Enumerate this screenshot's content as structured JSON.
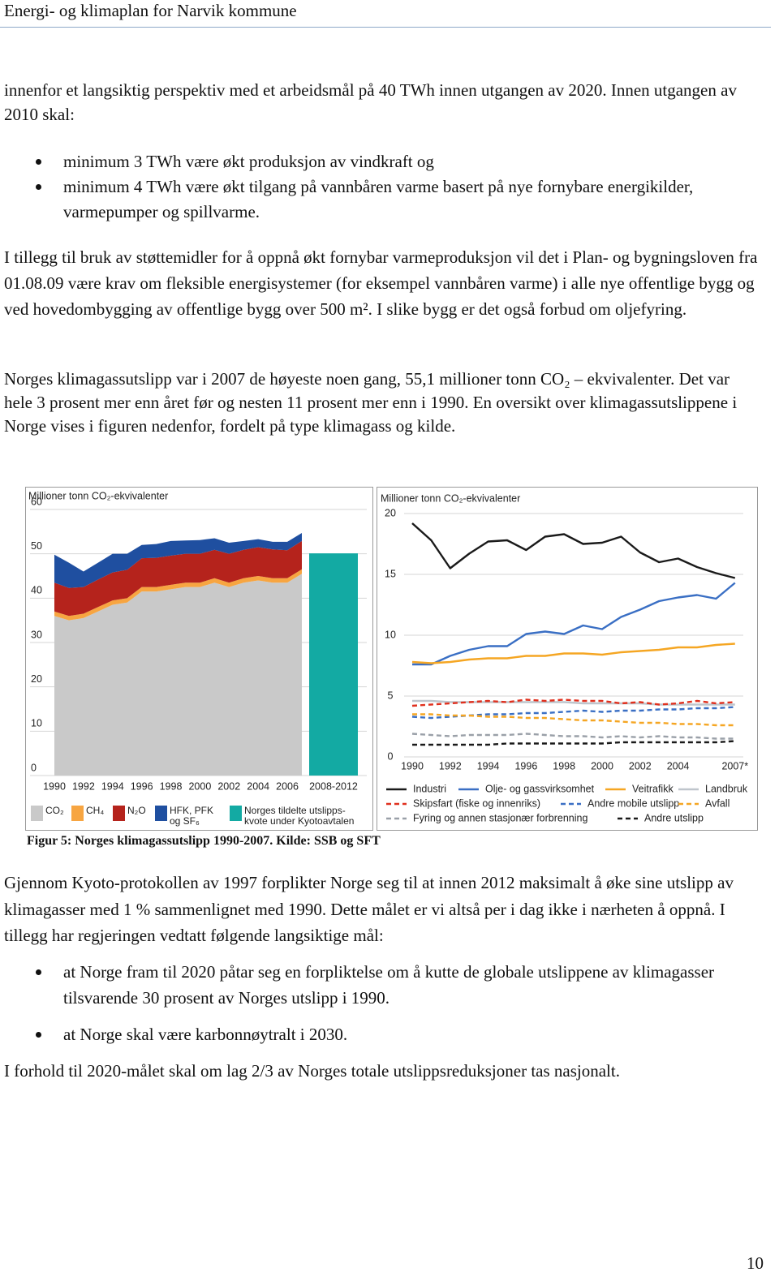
{
  "header": {
    "title": "Energi- og klimaplan for Narvik kommune"
  },
  "intro": "innenfor et langsiktig perspektiv med et arbeidsmål på 40 TWh innen utgangen av 2020. Innen utgangen av 2010 skal:",
  "list1": [
    "minimum 3 TWh være økt produksjon av vindkraft og",
    "minimum 4 TWh være økt tilgang på vannbåren varme basert på nye fornybare energikilder, varmepumper og spillvarme."
  ],
  "paragraph2": "I tillegg til bruk av støttemidler for å oppnå økt fornybar varmeproduksjon vil det i Plan- og bygningsloven fra 01.08.09 være krav om fleksible energisystemer (for eksempel vannbåren varme) i alle nye offentlige bygg og ved hovedombygging av offentlige bygg over 500 m². I slike bygg er det også forbud om oljefyring.",
  "paragraph3": "Norges klimagassutslipp var i 2007 de høyeste noen gang, 55,1 millioner tonn CO₂ – ekvivalenter. Det var hele 3 prosent mer enn året før og nesten 11 prosent mer enn i 1990. En oversikt over klimagassutslippene i Norge vises i figuren nedenfor, fordelt på type klimagass og kilde.",
  "caption": "Figur 5: Norges klimagassutslipp 1990-2007. Kilde: SSB og SFT",
  "paragraph4": "Gjennom Kyoto-protokollen av 1997 forplikter Norge seg til at innen 2012 maksimalt å øke sine utslipp av klimagasser med 1 % sammenlignet med 1990. Dette målet er vi altså per i dag ikke i nærheten å oppnå. I tillegg har regjeringen vedtatt følgende langsiktige mål:",
  "list2": [
    "at Norge fram til 2020 påtar seg en forpliktelse om å kutte de globale utslippene av klimagasser tilsvarende 30 prosent av Norges utslipp i 1990.",
    "at Norge skal være karbonnøytralt i 2030."
  ],
  "paragraph5": "I forhold til 2020-målet skal om lag 2/3 av Norges totale utslippsreduksjoner tas nasjonalt.",
  "page_number": "10",
  "chart_data": [
    {
      "type": "stacked_area",
      "title": "Millioner tonn CO₂-ekvivalenter",
      "categories": [
        "1990",
        null,
        "1992",
        null,
        "1994",
        null,
        "1996",
        null,
        "1998",
        null,
        "2000",
        null,
        "2002",
        null,
        "2004",
        null,
        "2006",
        null,
        "2008-2012"
      ],
      "ylim": [
        0,
        60
      ],
      "yticks": [
        0,
        10,
        20,
        30,
        40,
        50,
        60
      ],
      "grid": true,
      "series": [
        {
          "name": "CO₂",
          "color": "#c9c9c9",
          "values": [
            36,
            35,
            35.5,
            37,
            38.5,
            39,
            41.5,
            41.5,
            42,
            42.5,
            42.5,
            43.5,
            42.5,
            43.5,
            44,
            43.5,
            43.5,
            45.5,
            null
          ]
        },
        {
          "name": "CH₄",
          "color": "#f7a541",
          "values": [
            1,
            1,
            1,
            1,
            1,
            1,
            1,
            1,
            1,
            1,
            1,
            1,
            1,
            1,
            1,
            1,
            1,
            1,
            null
          ]
        },
        {
          "name": "N₂O",
          "color": "#b5231c",
          "values": [
            6.5,
            6.3,
            6.0,
            6.2,
            6.3,
            6.4,
            6.5,
            6.6,
            6.6,
            6.5,
            6.5,
            6.4,
            6.5,
            6.4,
            6.5,
            6.5,
            6.3,
            6.4,
            null
          ]
        },
        {
          "name": "HFK, PFK og SF₆",
          "color": "#1f4fa0",
          "values": [
            6.3,
            5.7,
            3.5,
            3.8,
            4.2,
            3.6,
            3.0,
            3.1,
            3.3,
            3.0,
            3.1,
            2.6,
            2.5,
            2.0,
            1.8,
            1.7,
            1.9,
            1.8,
            null
          ]
        },
        {
          "name": "Norges tildelte utslipps-kvote under Kyotoavtalen",
          "type": "bar",
          "color": "#13aaa3",
          "values": [
            null,
            null,
            null,
            null,
            null,
            null,
            null,
            null,
            null,
            null,
            null,
            null,
            null,
            null,
            null,
            null,
            null,
            null,
            50.1
          ]
        }
      ]
    },
    {
      "type": "line",
      "title": "Millioner tonn CO₂-ekvivalenter",
      "categories": [
        "1990",
        null,
        "1992",
        null,
        "1994",
        null,
        "1996",
        null,
        "1998",
        null,
        "2000",
        null,
        "2002",
        null,
        "2004",
        null,
        null,
        "2007*"
      ],
      "ylim": [
        0,
        20
      ],
      "yticks": [
        0,
        5,
        10,
        15,
        20
      ],
      "grid": true,
      "series": [
        {
          "name": "Industri",
          "color": "#1a1a1a",
          "dash": false,
          "values": [
            19.2,
            17.8,
            15.5,
            16.7,
            17.7,
            17.8,
            17.0,
            18.1,
            18.3,
            17.5,
            17.6,
            18.1,
            16.8,
            16.0,
            16.3,
            15.6,
            15.1,
            14.7
          ]
        },
        {
          "name": "Olje- og gassvirksomhet",
          "color": "#3a6fc4",
          "dash": false,
          "values": [
            7.6,
            7.6,
            8.3,
            8.8,
            9.1,
            9.1,
            10.1,
            10.3,
            10.1,
            10.8,
            10.5,
            11.5,
            12.1,
            12.8,
            13.1,
            13.3,
            13.0,
            14.3
          ]
        },
        {
          "name": "Veitrafikk",
          "color": "#f5a623",
          "dash": false,
          "values": [
            7.8,
            7.7,
            7.8,
            8.0,
            8.1,
            8.1,
            8.3,
            8.3,
            8.5,
            8.5,
            8.4,
            8.6,
            8.7,
            8.8,
            9.0,
            9.0,
            9.2,
            9.3
          ]
        },
        {
          "name": "Landbruk",
          "color": "#bfc5cc",
          "dash": false,
          "values": [
            4.6,
            4.6,
            4.5,
            4.5,
            4.5,
            4.5,
            4.5,
            4.5,
            4.5,
            4.4,
            4.4,
            4.4,
            4.4,
            4.3,
            4.3,
            4.3,
            4.3,
            4.3
          ]
        },
        {
          "name": "Skipsfart (fiske og innenriks)",
          "color": "#e0301e",
          "dash": true,
          "values": [
            4.2,
            4.3,
            4.4,
            4.5,
            4.6,
            4.5,
            4.7,
            4.6,
            4.7,
            4.6,
            4.6,
            4.4,
            4.5,
            4.3,
            4.4,
            4.6,
            4.4,
            4.5
          ]
        },
        {
          "name": "Andre mobile utslipp",
          "color": "#3a6fc4",
          "dash": true,
          "values": [
            3.3,
            3.2,
            3.3,
            3.4,
            3.5,
            3.5,
            3.6,
            3.6,
            3.7,
            3.8,
            3.7,
            3.8,
            3.8,
            3.9,
            3.9,
            4.0,
            4.0,
            4.1
          ]
        },
        {
          "name": "Avfall",
          "color": "#f5a623",
          "dash": true,
          "values": [
            3.5,
            3.5,
            3.4,
            3.4,
            3.3,
            3.3,
            3.2,
            3.2,
            3.1,
            3.0,
            3.0,
            2.9,
            2.8,
            2.8,
            2.7,
            2.7,
            2.6,
            2.6
          ]
        },
        {
          "name": "Fyring og annen stasjonær forbrenning",
          "color": "#9aa0a8",
          "dash": true,
          "values": [
            1.9,
            1.8,
            1.7,
            1.8,
            1.8,
            1.8,
            1.9,
            1.8,
            1.7,
            1.7,
            1.6,
            1.7,
            1.6,
            1.7,
            1.6,
            1.6,
            1.5,
            1.5
          ]
        },
        {
          "name": "Andre utslipp",
          "color": "#1a1a1a",
          "dash": true,
          "values": [
            1.0,
            1.0,
            1.0,
            1.0,
            1.0,
            1.1,
            1.1,
            1.1,
            1.1,
            1.1,
            1.1,
            1.2,
            1.2,
            1.2,
            1.2,
            1.2,
            1.2,
            1.3
          ]
        }
      ]
    }
  ]
}
